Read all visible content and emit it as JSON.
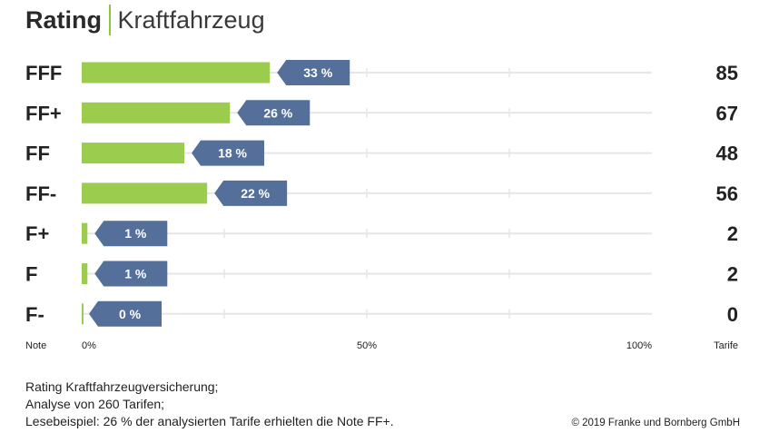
{
  "header": {
    "title": "Rating",
    "subtitle": "Kraftfahrzeug"
  },
  "chart_data": {
    "type": "bar",
    "orientation": "horizontal",
    "categories": [
      "FFF",
      "FF+",
      "FF",
      "FF-",
      "F+",
      "F",
      "F-"
    ],
    "values": [
      33,
      26,
      18,
      22,
      1,
      1,
      0
    ],
    "value_labels": [
      "33 %",
      "26 %",
      "18 %",
      "22 %",
      "1 %",
      "1 %",
      "0 %"
    ],
    "counts": [
      85,
      67,
      48,
      56,
      2,
      2,
      0
    ],
    "xlim": [
      0,
      100
    ],
    "x_ticks": [
      0,
      50,
      100
    ],
    "x_tick_labels": [
      "0%",
      "50%",
      "100%"
    ],
    "category_axis_label": "Note",
    "count_axis_label": "Tarife",
    "grid": true,
    "colors": {
      "bar": "#9ccc4e",
      "label_box": "#536f9a",
      "grid": "#e6e6e6"
    }
  },
  "footer": {
    "lines": [
      "Rating Kraftfahrzeugversicherung;",
      "Analyse von 260 Tarifen;",
      "Lesebeispiel: 26 % der analysierten Tarife erhielten die Note FF+."
    ],
    "copyright": "© 2019 Franke und Bornberg GmbH"
  }
}
